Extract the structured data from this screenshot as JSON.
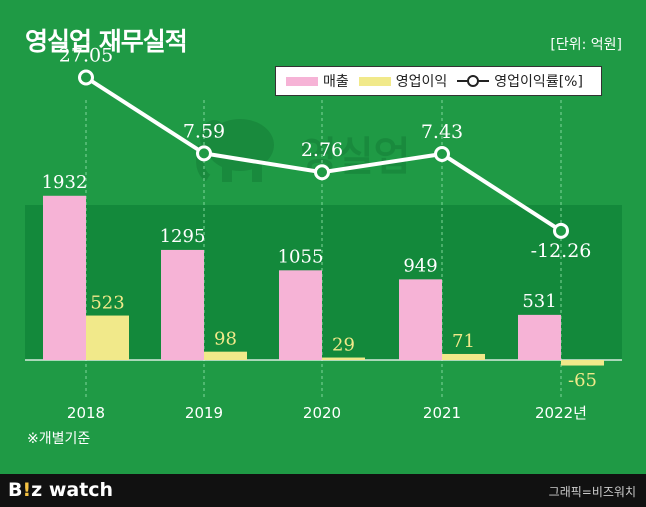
{
  "header": {
    "title": "영실업 재무실적",
    "unit": "[단위: 억원]"
  },
  "legend": {
    "revenue": "매출",
    "operating_profit": "영업이익",
    "margin": "영업이익률[%]"
  },
  "chart_data": {
    "type": "bar",
    "categories": [
      "2018",
      "2019",
      "2020",
      "2021",
      "2022년"
    ],
    "series": [
      {
        "name": "매출",
        "type": "bar",
        "values": [
          1932,
          1295,
          1055,
          949,
          531
        ],
        "color": "#f6b3d6"
      },
      {
        "name": "영업이익",
        "type": "bar",
        "values": [
          523,
          98,
          29,
          71,
          -65
        ],
        "color": "#f1e98a"
      },
      {
        "name": "영업이익률[%]",
        "type": "line",
        "values": [
          27.05,
          7.59,
          2.76,
          7.43,
          -12.26
        ],
        "color": "#ffffff"
      }
    ],
    "value_labels": {
      "revenue": [
        "1932",
        "1295",
        "1055",
        "949",
        "531"
      ],
      "operating_profit": [
        "523",
        "98",
        "29",
        "71",
        "-65"
      ],
      "margin": [
        "27.05",
        "7.59",
        "2.76",
        "7.43",
        "-12.26"
      ]
    }
  },
  "watermark": {
    "text": "영실업"
  },
  "note": "※개별기준",
  "footer": {
    "logo_b": "B",
    "logo_bang": "!",
    "logo_z": "z",
    "logo_watch": " watch",
    "credit": "그래픽=비즈워치"
  },
  "colors": {
    "background": "#1f9a45",
    "plot_band": "#13893b",
    "revenue": "#f6b3d6",
    "operating_profit": "#f1e98a",
    "line": "#ffffff",
    "revenue_label": "#ffffff",
    "profit_label": "#f1e98a"
  }
}
